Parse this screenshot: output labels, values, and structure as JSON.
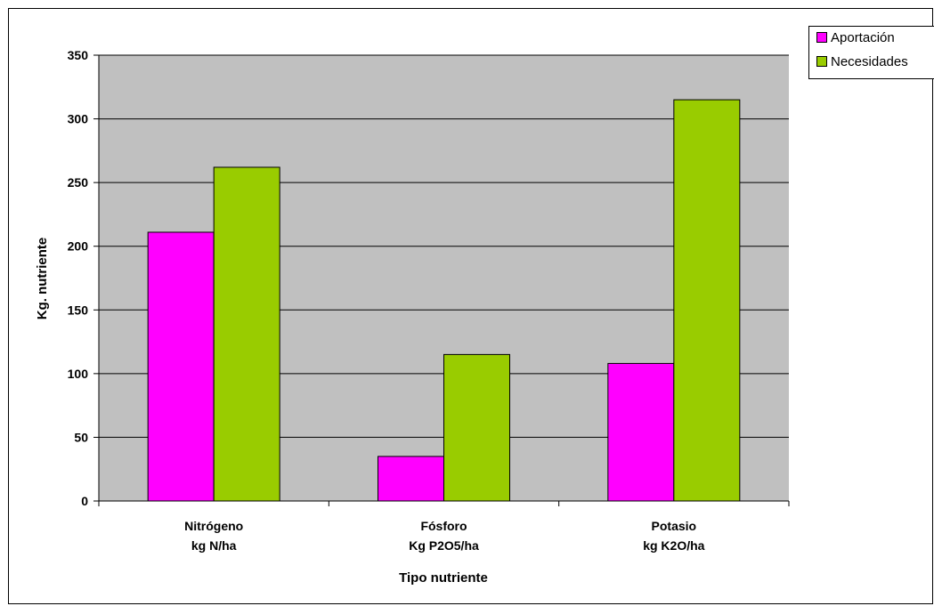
{
  "chart_data": {
    "type": "bar",
    "categories": [
      [
        "Nitrógeno",
        "kg N/ha"
      ],
      [
        "Fósforo",
        "Kg P2O5/ha"
      ],
      [
        "Potasio",
        "kg K2O/ha"
      ]
    ],
    "series": [
      {
        "name": "Aportación",
        "color": "#ff00ff",
        "values": [
          211,
          35,
          108
        ]
      },
      {
        "name": "Necesidades",
        "color": "#99cc00",
        "values": [
          262,
          115,
          315
        ]
      }
    ],
    "xlabel": "Tipo nutriente",
    "ylabel": "Kg. nutriente",
    "ylim": [
      0,
      350
    ],
    "yticks": [
      0,
      50,
      100,
      150,
      200,
      250,
      300,
      350
    ],
    "grid": true,
    "plot_background": "#c0c0c0",
    "legend_position": "top-right"
  }
}
